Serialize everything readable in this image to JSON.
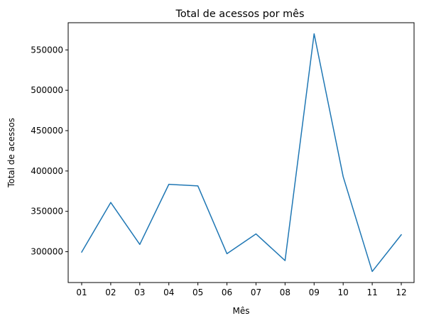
{
  "chart_data": {
    "type": "line",
    "title": "Total de acessos por mês",
    "xlabel": "Mês",
    "ylabel": "Total de acessos",
    "categories": [
      "01",
      "02",
      "03",
      "04",
      "05",
      "06",
      "07",
      "08",
      "09",
      "10",
      "11",
      "12"
    ],
    "series": [
      {
        "values": [
          299500,
          361000,
          309000,
          383500,
          381500,
          297500,
          322000,
          289000,
          570000,
          393000,
          275500,
          321000
        ],
        "color": "#1f77b4"
      }
    ],
    "yticks": [
      300000,
      350000,
      400000,
      450000,
      500000,
      550000
    ],
    "ytick_labels": [
      "300000",
      "350000",
      "400000",
      "450000",
      "500000",
      "550000"
    ],
    "ylim": [
      261800,
      583700
    ],
    "grid": false,
    "legend": false
  }
}
